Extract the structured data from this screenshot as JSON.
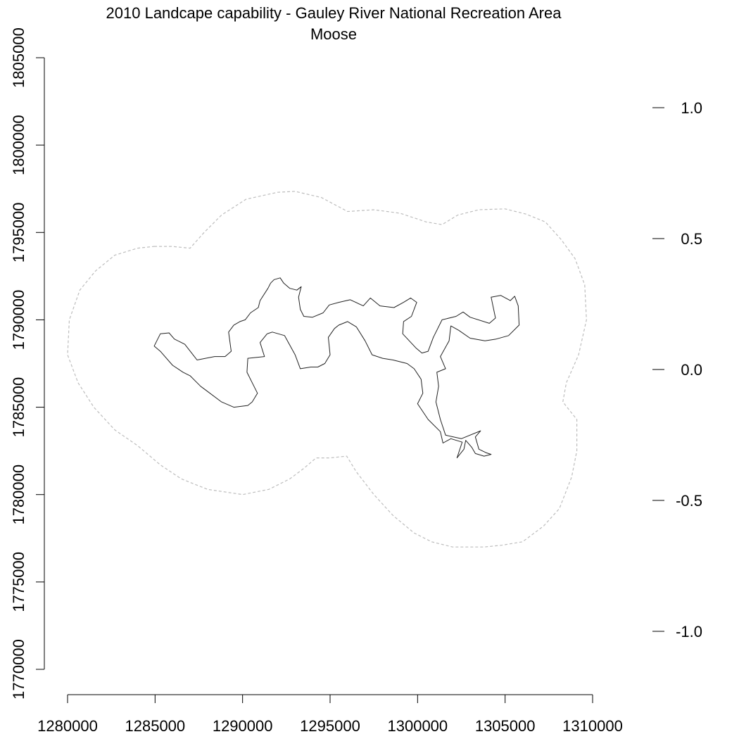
{
  "title": {
    "line1": "2010 Landcape capability - Gauley River National Recreation Area",
    "line2": "Moose"
  },
  "chart_data": {
    "type": "map",
    "x_axis": {
      "ticks": [
        1280000,
        1285000,
        1290000,
        1295000,
        1300000,
        1305000,
        1310000
      ],
      "range": [
        1280000,
        1310000
      ]
    },
    "y_axis": {
      "ticks": [
        1770000,
        1775000,
        1780000,
        1785000,
        1790000,
        1795000,
        1800000,
        1805000
      ],
      "range": [
        1770000,
        1805000
      ]
    },
    "legend_scale": {
      "ticks": [
        -1.0,
        -0.5,
        0.0,
        0.5,
        1.0
      ],
      "tick_labels": [
        "-1.0",
        "-0.5",
        "0.0",
        "0.5",
        "1.0"
      ],
      "range": [
        -1.0,
        1.0
      ]
    },
    "colors": {
      "boundary": "#222222",
      "buffer": "#bdbdbd"
    },
    "buffer_outline": [
      [
        1284950,
        1794200
      ],
      [
        1285950,
        1794200
      ],
      [
        1287000,
        1794100
      ],
      [
        1287800,
        1795000
      ],
      [
        1288800,
        1796000
      ],
      [
        1290200,
        1796900
      ],
      [
        1292000,
        1797300
      ],
      [
        1293000,
        1797350
      ],
      [
        1294500,
        1797000
      ],
      [
        1296000,
        1796200
      ],
      [
        1297500,
        1796300
      ],
      [
        1299000,
        1796100
      ],
      [
        1300500,
        1795600
      ],
      [
        1301400,
        1795450
      ],
      [
        1302300,
        1796000
      ],
      [
        1303500,
        1796300
      ],
      [
        1305000,
        1796350
      ],
      [
        1306200,
        1796050
      ],
      [
        1307300,
        1795600
      ],
      [
        1308200,
        1794600
      ],
      [
        1309000,
        1793500
      ],
      [
        1309550,
        1792000
      ],
      [
        1309650,
        1790000
      ],
      [
        1309200,
        1788000
      ],
      [
        1308500,
        1786400
      ],
      [
        1308300,
        1785300
      ],
      [
        1309100,
        1784300
      ],
      [
        1309100,
        1782500
      ],
      [
        1308800,
        1781000
      ],
      [
        1308100,
        1779200
      ],
      [
        1307200,
        1778200
      ],
      [
        1306000,
        1777300
      ],
      [
        1304800,
        1777100
      ],
      [
        1303800,
        1777000
      ],
      [
        1302000,
        1777000
      ],
      [
        1300800,
        1777300
      ],
      [
        1299800,
        1777800
      ],
      [
        1298600,
        1778800
      ],
      [
        1297500,
        1780000
      ],
      [
        1296500,
        1781300
      ],
      [
        1295950,
        1782200
      ],
      [
        1295000,
        1782100
      ],
      [
        1294200,
        1782100
      ],
      [
        1293500,
        1781500
      ],
      [
        1292700,
        1780900
      ],
      [
        1291500,
        1780300
      ],
      [
        1290000,
        1780000
      ],
      [
        1288000,
        1780300
      ],
      [
        1286500,
        1780900
      ],
      [
        1285300,
        1781700
      ],
      [
        1284000,
        1782800
      ],
      [
        1282700,
        1783700
      ],
      [
        1281500,
        1785000
      ],
      [
        1280600,
        1786400
      ],
      [
        1280000,
        1788000
      ],
      [
        1280100,
        1790000
      ],
      [
        1280700,
        1791700
      ],
      [
        1281600,
        1792800
      ],
      [
        1282700,
        1793700
      ],
      [
        1284000,
        1794100
      ],
      [
        1284950,
        1794200
      ]
    ],
    "boundary_outline": [
      [
        1284950,
        1788500
      ],
      [
        1285300,
        1789200
      ],
      [
        1285800,
        1789250
      ],
      [
        1286100,
        1788900
      ],
      [
        1286700,
        1788600
      ],
      [
        1287400,
        1787700
      ],
      [
        1288400,
        1787900
      ],
      [
        1289000,
        1787900
      ],
      [
        1289350,
        1788200
      ],
      [
        1289200,
        1789300
      ],
      [
        1289500,
        1789700
      ],
      [
        1289850,
        1789900
      ],
      [
        1290150,
        1790000
      ],
      [
        1290450,
        1790400
      ],
      [
        1290900,
        1790700
      ],
      [
        1291000,
        1791100
      ],
      [
        1291450,
        1791800
      ],
      [
        1291600,
        1792100
      ],
      [
        1291800,
        1792300
      ],
      [
        1292150,
        1792400
      ],
      [
        1292350,
        1792100
      ],
      [
        1292700,
        1791800
      ],
      [
        1293100,
        1791700
      ],
      [
        1293350,
        1791900
      ],
      [
        1293200,
        1791300
      ],
      [
        1293300,
        1790600
      ],
      [
        1293500,
        1790200
      ],
      [
        1294000,
        1790150
      ],
      [
        1294600,
        1790400
      ],
      [
        1294950,
        1790850
      ],
      [
        1295500,
        1791000
      ],
      [
        1296150,
        1791150
      ],
      [
        1296900,
        1790800
      ],
      [
        1297300,
        1791250
      ],
      [
        1297850,
        1790800
      ],
      [
        1298650,
        1790700
      ],
      [
        1299200,
        1791000
      ],
      [
        1299600,
        1791250
      ],
      [
        1299950,
        1791000
      ],
      [
        1299650,
        1790200
      ],
      [
        1299200,
        1789900
      ],
      [
        1299150,
        1789200
      ],
      [
        1299900,
        1788400
      ],
      [
        1300250,
        1788100
      ],
      [
        1300600,
        1788200
      ],
      [
        1300900,
        1789000
      ],
      [
        1301400,
        1790000
      ],
      [
        1302200,
        1790200
      ],
      [
        1302600,
        1790450
      ],
      [
        1303000,
        1790150
      ],
      [
        1304100,
        1789800
      ],
      [
        1304450,
        1790100
      ],
      [
        1304200,
        1791300
      ],
      [
        1304750,
        1791400
      ],
      [
        1305300,
        1791100
      ],
      [
        1305550,
        1791350
      ],
      [
        1305750,
        1790800
      ],
      [
        1305800,
        1789700
      ],
      [
        1305200,
        1789100
      ],
      [
        1304500,
        1788900
      ],
      [
        1303850,
        1788800
      ],
      [
        1303000,
        1788950
      ],
      [
        1302350,
        1789400
      ],
      [
        1301900,
        1789650
      ],
      [
        1301800,
        1788800
      ],
      [
        1301300,
        1787900
      ],
      [
        1301600,
        1787200
      ],
      [
        1301100,
        1787000
      ],
      [
        1301200,
        1786200
      ],
      [
        1301050,
        1785300
      ],
      [
        1301300,
        1784300
      ],
      [
        1301600,
        1783400
      ],
      [
        1302500,
        1783200
      ],
      [
        1303600,
        1783650
      ],
      [
        1303300,
        1783300
      ],
      [
        1303500,
        1782600
      ],
      [
        1303900,
        1782400
      ],
      [
        1304200,
        1782300
      ],
      [
        1303800,
        1782200
      ],
      [
        1303300,
        1782350
      ],
      [
        1303100,
        1782700
      ],
      [
        1302750,
        1783100
      ],
      [
        1302650,
        1782600
      ],
      [
        1302250,
        1782100
      ],
      [
        1302550,
        1783000
      ],
      [
        1301900,
        1783200
      ],
      [
        1301450,
        1782950
      ],
      [
        1301300,
        1783600
      ],
      [
        1300600,
        1784300
      ],
      [
        1300000,
        1785200
      ],
      [
        1300300,
        1785800
      ],
      [
        1300200,
        1786600
      ],
      [
        1299800,
        1787200
      ],
      [
        1299400,
        1787500
      ],
      [
        1298600,
        1787700
      ],
      [
        1298000,
        1787800
      ],
      [
        1297400,
        1788000
      ],
      [
        1297000,
        1788800
      ],
      [
        1296500,
        1789600
      ],
      [
        1296000,
        1789900
      ],
      [
        1295500,
        1789700
      ],
      [
        1295250,
        1789500
      ],
      [
        1294900,
        1789000
      ],
      [
        1295000,
        1788000
      ],
      [
        1294700,
        1787500
      ],
      [
        1294300,
        1787300
      ],
      [
        1293900,
        1787300
      ],
      [
        1293300,
        1787200
      ],
      [
        1293000,
        1788000
      ],
      [
        1292400,
        1789100
      ],
      [
        1291700,
        1789300
      ],
      [
        1291400,
        1789200
      ],
      [
        1291000,
        1788700
      ],
      [
        1291250,
        1787900
      ],
      [
        1290300,
        1787800
      ],
      [
        1290250,
        1787000
      ],
      [
        1290600,
        1786300
      ],
      [
        1290850,
        1785800
      ],
      [
        1290550,
        1785300
      ],
      [
        1290300,
        1785100
      ],
      [
        1289500,
        1785000
      ],
      [
        1288800,
        1785300
      ],
      [
        1288000,
        1785900
      ],
      [
        1287600,
        1786200
      ],
      [
        1287000,
        1786800
      ],
      [
        1286600,
        1787000
      ],
      [
        1286000,
        1787400
      ],
      [
        1285300,
        1788200
      ],
      [
        1284950,
        1788500
      ]
    ]
  }
}
